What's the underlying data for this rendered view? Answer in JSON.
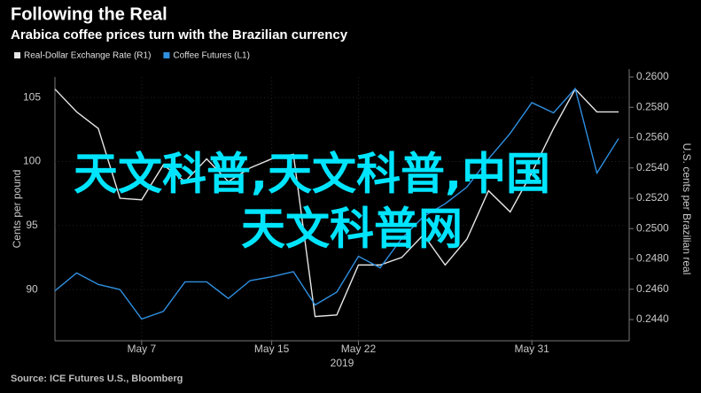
{
  "chart_data": {
    "type": "line",
    "title": "Following the Real",
    "subtitle": "Arabica coffee prices turn with the Brazilian currency",
    "source": "Source: ICE Futures U.S., Bloomberg",
    "xlabel": "2019",
    "ylabel": "Cents per pound",
    "y2label": "U.S. cents per Brazilian real",
    "categories": [
      null,
      null,
      null,
      null,
      "May 7",
      null,
      null,
      null,
      null,
      null,
      "May 15",
      null,
      null,
      null,
      "May 22",
      null,
      null,
      null,
      null,
      null,
      null,
      null,
      "May 31",
      null,
      null,
      null,
      null
    ],
    "series": [
      {
        "name": "Real-Dollar Exchange Rate (R1)",
        "color": "#e6e6e6",
        "axis": "y2",
        "values": [
          0.2592,
          0.2577,
          0.2566,
          0.252,
          0.2519,
          0.2542,
          0.2531,
          0.2546,
          0.2531,
          0.254,
          0.2546,
          0.2549,
          0.2442,
          0.2443,
          0.2476,
          0.2476,
          0.2481,
          0.2496,
          0.2476,
          0.2493,
          0.2525,
          0.2511,
          0.2537,
          0.2566,
          0.2592,
          0.2577,
          0.2577
        ]
      },
      {
        "name": "Coffee Futures (L1)",
        "color": "#2f8fe0",
        "values": [
          89.9,
          91.3,
          90.4,
          90.0,
          87.7,
          88.3,
          90.6,
          90.6,
          89.3,
          90.7,
          91.0,
          91.4,
          88.8,
          89.8,
          92.6,
          91.7,
          94.0,
          95.7,
          96.7,
          98.0,
          100.2,
          102.2,
          104.6,
          103.8,
          105.7,
          99.1,
          101.8
        ]
      }
    ],
    "ylim": [
      86,
      106.6
    ],
    "yticks": [
      90,
      95,
      100,
      105
    ],
    "y2lim": [
      0.2426,
      0.26
    ],
    "y2ticks": [
      {
        "value": 0.244,
        "label": "0.2440"
      },
      {
        "value": 0.246,
        "label": "0.2460"
      },
      {
        "value": 0.248,
        "label": "0.2480"
      },
      {
        "value": 0.25,
        "label": "0.2500"
      },
      {
        "value": 0.252,
        "label": "0.2520"
      },
      {
        "value": 0.254,
        "label": "0.2540"
      },
      {
        "value": 0.256,
        "label": "0.2560"
      },
      {
        "value": 0.258,
        "label": "0.2580"
      },
      {
        "value": 0.26,
        "label": "0.2600"
      }
    ],
    "grid": true,
    "annotations": [
      "天文科普,天文科普,中国",
      "天文科普网"
    ],
    "annotation_color": "#00e5ff"
  }
}
